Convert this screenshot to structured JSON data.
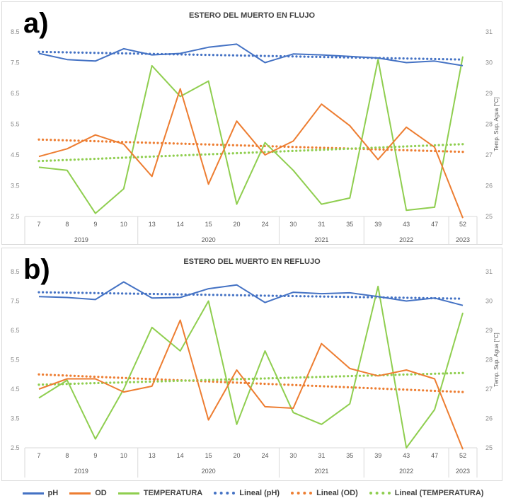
{
  "legend": {
    "ph": "pH",
    "od": "OD",
    "temp": "TEMPERATURA",
    "lin_ph": "Lineal (pH)",
    "lin_od": "Lineal (OD)",
    "lin_temp": "Lineal (TEMPERATURA)"
  },
  "colors": {
    "ph": "#4472c4",
    "od": "#ed7d31",
    "temp": "#8fce4f",
    "trend_temp": "#8fce4f"
  },
  "chart_data": [
    {
      "panel_letter": "a)",
      "type": "line",
      "title": "ESTERO DEL MUERTO EN FLUJO",
      "y2label": "Temp. Sup. Agua [°C]",
      "ylim": [
        2.5,
        8.5
      ],
      "y2lim": [
        25,
        31
      ],
      "yticks": [
        "8.5",
        "7.5",
        "6.5",
        "5.5",
        "4.5",
        "3.5",
        "2.5"
      ],
      "y2ticks": [
        "31",
        "30",
        "29",
        "28",
        "27",
        "26",
        "25"
      ],
      "categories": [
        "7",
        "8",
        "9",
        "10",
        "13",
        "14",
        "15",
        "20",
        "24",
        "30",
        "31",
        "35",
        "39",
        "43",
        "47",
        "52"
      ],
      "years": [
        {
          "label": "2019",
          "count": 4
        },
        {
          "label": "2020",
          "count": 5
        },
        {
          "label": "2021",
          "count": 3
        },
        {
          "label": "2022",
          "count": 3
        },
        {
          "label": "2023",
          "count": 1
        }
      ],
      "series": [
        {
          "name": "pH",
          "axis": "left",
          "values": [
            7.8,
            7.6,
            7.55,
            7.95,
            7.75,
            7.8,
            8.0,
            8.1,
            7.5,
            7.78,
            7.75,
            7.7,
            7.65,
            7.5,
            7.55,
            7.4
          ]
        },
        {
          "name": "OD",
          "axis": "left",
          "values": [
            4.45,
            4.7,
            5.15,
            4.85,
            3.8,
            6.65,
            3.55,
            5.6,
            4.5,
            4.95,
            6.15,
            5.45,
            4.35,
            5.4,
            4.75,
            2.45
          ]
        },
        {
          "name": "TEMPERATURA",
          "axis": "right",
          "values": [
            26.6,
            26.5,
            25.1,
            25.9,
            29.9,
            28.9,
            29.4,
            25.4,
            27.4,
            26.5,
            25.4,
            25.6,
            30.1,
            25.2,
            25.3,
            30.2
          ]
        }
      ],
      "trends": [
        {
          "name": "Lineal (pH)",
          "axis": "left",
          "start": 7.85,
          "end": 7.6
        },
        {
          "name": "Lineal (OD)",
          "axis": "left",
          "start": 5.0,
          "end": 4.6
        },
        {
          "name": "Lineal (TEMPERATURA)",
          "axis": "right",
          "start": 26.8,
          "end": 27.35
        }
      ]
    },
    {
      "panel_letter": "b)",
      "type": "line",
      "title": "ESTERO DEL MUERTO EN REFLUJO",
      "y2label": "Temp. Sup. Agua [°C]",
      "ylim": [
        2.5,
        8.5
      ],
      "y2lim": [
        25,
        31
      ],
      "yticks": [
        "8.5",
        "7.5",
        "6.5",
        "5.5",
        "4.5",
        "3.5",
        "2.5"
      ],
      "y2ticks": [
        "31",
        "30",
        "29",
        "28",
        "27",
        "26",
        "25"
      ],
      "categories": [
        "7",
        "8",
        "9",
        "10",
        "13",
        "14",
        "15",
        "20",
        "24",
        "30",
        "31",
        "35",
        "39",
        "43",
        "47",
        "52"
      ],
      "years": [
        {
          "label": "2019",
          "count": 4
        },
        {
          "label": "2020",
          "count": 5
        },
        {
          "label": "2021",
          "count": 3
        },
        {
          "label": "2022",
          "count": 3
        },
        {
          "label": "2023",
          "count": 1
        }
      ],
      "series": [
        {
          "name": "pH",
          "axis": "left",
          "values": [
            7.65,
            7.62,
            7.55,
            8.15,
            7.6,
            7.62,
            7.92,
            8.05,
            7.45,
            7.8,
            7.75,
            7.78,
            7.65,
            7.5,
            7.6,
            7.35
          ]
        },
        {
          "name": "OD",
          "axis": "left",
          "values": [
            4.5,
            4.85,
            4.85,
            4.4,
            4.6,
            6.85,
            3.45,
            5.15,
            3.9,
            3.85,
            6.05,
            5.2,
            4.95,
            5.15,
            4.85,
            2.45
          ]
        },
        {
          "name": "TEMPERATURA",
          "axis": "right",
          "values": [
            26.7,
            27.3,
            25.3,
            27.0,
            29.1,
            28.3,
            30.0,
            25.8,
            28.3,
            26.2,
            25.8,
            26.5,
            30.5,
            25.0,
            26.3,
            29.6
          ]
        }
      ],
      "trends": [
        {
          "name": "Lineal (pH)",
          "axis": "left",
          "start": 7.8,
          "end": 7.58
        },
        {
          "name": "Lineal (OD)",
          "axis": "left",
          "start": 5.0,
          "end": 4.4
        },
        {
          "name": "Lineal (TEMPERATURA)",
          "axis": "right",
          "start": 27.15,
          "end": 27.55
        }
      ]
    }
  ]
}
